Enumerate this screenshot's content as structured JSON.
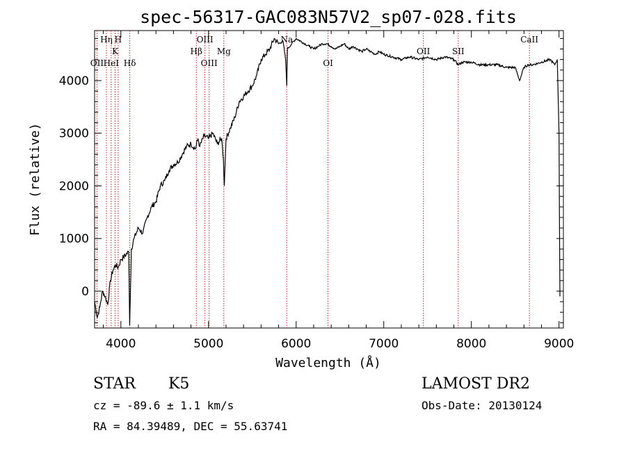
{
  "chart_data": {
    "type": "line",
    "title": "spec-56317-GAC083N57V2_sp07-028.fits",
    "xlabel": "Wavelength (Å)",
    "ylabel": "Flux (relative)",
    "xlim": [
      3700,
      9050
    ],
    "ylim": [
      -700,
      4950
    ],
    "x_ticks": [
      4000,
      5000,
      6000,
      7000,
      8000,
      9000
    ],
    "y_ticks": [
      0,
      1000,
      2000,
      3000,
      4000
    ],
    "series": [
      {
        "x": [
          3700,
          3730,
          3760,
          3790,
          3820,
          3850,
          3880,
          3910,
          3940,
          3970,
          4000,
          4030,
          4060,
          4090,
          4100,
          4120,
          4150,
          4200,
          4250,
          4300,
          4350,
          4400,
          4450,
          4500,
          4550,
          4600,
          4650,
          4700,
          4750,
          4800,
          4850,
          4880,
          4900,
          4950,
          5000,
          5050,
          5100,
          5150,
          5170,
          5180,
          5200,
          5250,
          5300,
          5350,
          5400,
          5450,
          5500,
          5550,
          5600,
          5650,
          5700,
          5750,
          5800,
          5850,
          5880,
          5893,
          5900,
          5950,
          6000,
          6050,
          6100,
          6150,
          6200,
          6250,
          6300,
          6350,
          6400,
          6450,
          6500,
          6550,
          6600,
          6650,
          6700,
          6750,
          6800,
          6850,
          6900,
          6950,
          7000,
          7100,
          7200,
          7300,
          7400,
          7500,
          7600,
          7700,
          7800,
          7850,
          7900,
          8000,
          8100,
          8200,
          8300,
          8400,
          8500,
          8550,
          8600,
          8650,
          8700,
          8800,
          8900,
          8950,
          8980,
          9000,
          9010
        ],
        "y": [
          -200,
          -500,
          -300,
          0,
          -100,
          -250,
          200,
          400,
          500,
          450,
          600,
          650,
          700,
          750,
          -650,
          800,
          1000,
          1200,
          1100,
          1400,
          1600,
          1700,
          2000,
          2100,
          2300,
          2400,
          2450,
          2600,
          2750,
          2800,
          2700,
          2900,
          2750,
          2950,
          2900,
          3000,
          2800,
          2900,
          2500,
          2000,
          2900,
          3100,
          3300,
          3600,
          3700,
          3800,
          3900,
          4100,
          4400,
          4500,
          4600,
          4800,
          4700,
          4750,
          4400,
          3900,
          4600,
          4700,
          4800,
          4750,
          4700,
          4650,
          4600,
          4650,
          4700,
          4700,
          4650,
          4600,
          4650,
          4700,
          4600,
          4650,
          4600,
          4550,
          4600,
          4550,
          4500,
          4550,
          4500,
          4450,
          4400,
          4450,
          4400,
          4450,
          4400,
          4450,
          4400,
          4300,
          4350,
          4350,
          4300,
          4300,
          4300,
          4250,
          4250,
          4000,
          4250,
          4300,
          4300,
          4350,
          4400,
          4300,
          4400,
          3000,
          -100
        ]
      }
    ],
    "line_markers": [
      {
        "label": "OII",
        "wl": 3727,
        "row": 2
      },
      {
        "label": "Hη",
        "wl": 3835,
        "row": 0
      },
      {
        "label": "HeI",
        "wl": 3889,
        "row": 2
      },
      {
        "label": "K",
        "wl": 3934,
        "row": 1
      },
      {
        "label": "H",
        "wl": 3969,
        "row": 0
      },
      {
        "label": "Hδ",
        "wl": 4102,
        "row": 2
      },
      {
        "label": "Hβ",
        "wl": 4861,
        "row": 1
      },
      {
        "label": "OIII",
        "wl": 4959,
        "row": 0
      },
      {
        "label": "OIII",
        "wl": 5007,
        "row": 2
      },
      {
        "label": "Mg",
        "wl": 5175,
        "row": 1
      },
      {
        "label": "Na",
        "wl": 5893,
        "row": 0
      },
      {
        "label": "OI",
        "wl": 6364,
        "row": 2
      },
      {
        "label": "OII",
        "wl": 7452,
        "row": 1
      },
      {
        "label": "SII",
        "wl": 7850,
        "row": 1
      },
      {
        "label": "CaII",
        "wl": 8662,
        "row": 0
      }
    ]
  },
  "info": {
    "class": "STAR",
    "subclass": "K5",
    "survey": "LAMOST DR2",
    "cz": "cz = -89.6 ± 1.1 km/s",
    "obs_date": "Obs-Date: 20130124",
    "coords": "RA =  84.39489, DEC =  55.63741"
  }
}
